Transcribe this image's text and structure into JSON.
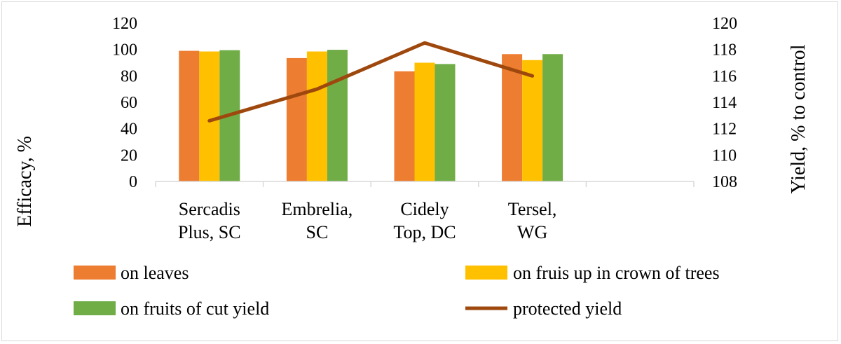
{
  "chart_data": {
    "type": "bar",
    "categories": [
      [
        "Sercadis",
        "Plus, SC"
      ],
      [
        "Embrelia,",
        "SC"
      ],
      [
        "Cidely",
        "Top, DC"
      ],
      [
        "Tersel,",
        "WG"
      ],
      [
        "",
        ""
      ]
    ],
    "series": [
      {
        "name": "on leaves",
        "color": "#ED7D31",
        "values": [
          99,
          93.5,
          83.5,
          96.5,
          null
        ]
      },
      {
        "name": "on fruis up in crown of trees",
        "color": "#FFC000",
        "values": [
          98.5,
          98.5,
          90,
          92,
          null
        ]
      },
      {
        "name": "on fruits of cut yield",
        "color": "#70AD47",
        "values": [
          99.5,
          99.8,
          89,
          96.5,
          null
        ]
      }
    ],
    "line_series": {
      "name": "protected yield",
      "color": "#9E480E",
      "axis": "right",
      "values": [
        112.6,
        115,
        118.5,
        116,
        null
      ]
    },
    "ylabel": "Efficacy, %",
    "y2label": "Yield, % to control",
    "ylim": [
      0,
      120
    ],
    "y2lim": [
      108,
      120
    ],
    "yticks": [
      "0",
      "20",
      "40",
      "60",
      "80",
      "100",
      "120"
    ],
    "y2ticks": [
      "108",
      "110",
      "112",
      "114",
      "116",
      "118",
      "120"
    ],
    "legend_position": "bottom",
    "grid": false
  }
}
